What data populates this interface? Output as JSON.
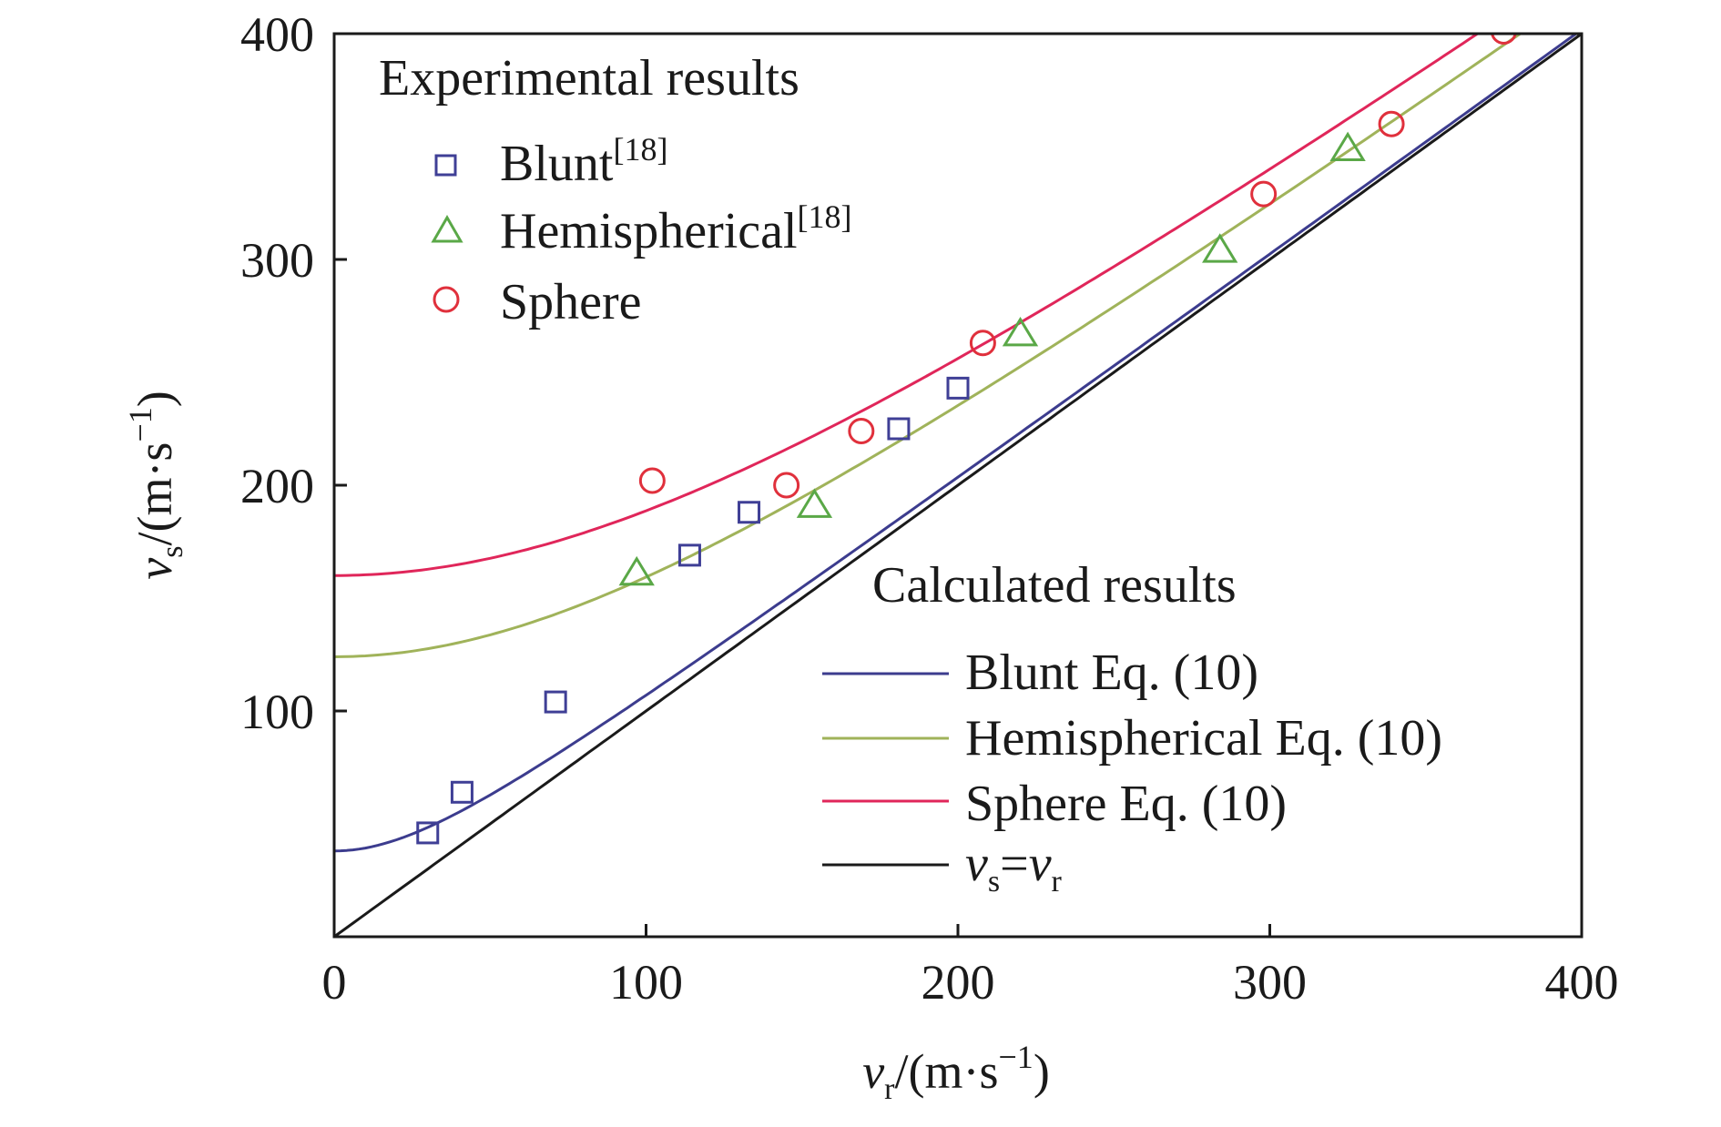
{
  "chart_data": {
    "type": "scatter",
    "title": "",
    "xlabel": {
      "var": "v",
      "sub": "r",
      "unit": "/(m·s",
      "exp": "−1",
      "close": ")"
    },
    "ylabel": {
      "var": "v",
      "sub": "s",
      "unit": "/(m·s",
      "exp": "−1",
      "close": ")"
    },
    "xlim": [
      0,
      400
    ],
    "ylim": [
      0,
      400
    ],
    "xticks": [
      0,
      100,
      200,
      300,
      400
    ],
    "yticks": [
      100,
      200,
      300,
      400
    ],
    "x_tick_labels": [
      "0",
      "100",
      "200",
      "300",
      "400"
    ],
    "y_tick_labels": [
      "100",
      "200",
      "300",
      "400"
    ],
    "grid": false,
    "legend": {
      "experimental_title": "Experimental results",
      "calculated_title": "Calculated results",
      "placement": "top-left and bottom-right"
    },
    "experimental": [
      {
        "name": "Blunt",
        "ref": "[18]",
        "marker": "square",
        "color": "#3f3f96",
        "points": [
          [
            30,
            46
          ],
          [
            41,
            64
          ],
          [
            71,
            104
          ],
          [
            114,
            169
          ],
          [
            133,
            188
          ],
          [
            181,
            225
          ],
          [
            200,
            243
          ]
        ]
      },
      {
        "name": "Hemispherical",
        "ref": "[18]",
        "marker": "triangle",
        "color": "#5aa847",
        "points": [
          [
            97,
            161
          ],
          [
            154,
            191
          ],
          [
            220,
            267
          ],
          [
            284,
            304
          ],
          [
            325,
            349
          ]
        ]
      },
      {
        "name": "Sphere",
        "ref": "",
        "marker": "circle",
        "color": "#e0303c",
        "points": [
          [
            102,
            202
          ],
          [
            145,
            200
          ],
          [
            169,
            224
          ],
          [
            208,
            263
          ],
          [
            298,
            329
          ],
          [
            339,
            360
          ],
          [
            375,
            401
          ]
        ]
      }
    ],
    "calculated": [
      {
        "name": "Blunt Eq. (10)",
        "color": "#3c3c8e",
        "v0": 38
      },
      {
        "name": "Hemispherical Eq. (10)",
        "color": "#a0b35a",
        "v0": 124
      },
      {
        "name": "Sphere Eq. (10)",
        "color": "#e0265a",
        "v0": 160
      },
      {
        "name": "v_s = v_r",
        "label": {
          "a": "v",
          "a_sub": "s",
          "eq": "=",
          "b": "v",
          "b_sub": "r"
        },
        "color": "#1a1a1a",
        "v0": 0
      }
    ]
  }
}
